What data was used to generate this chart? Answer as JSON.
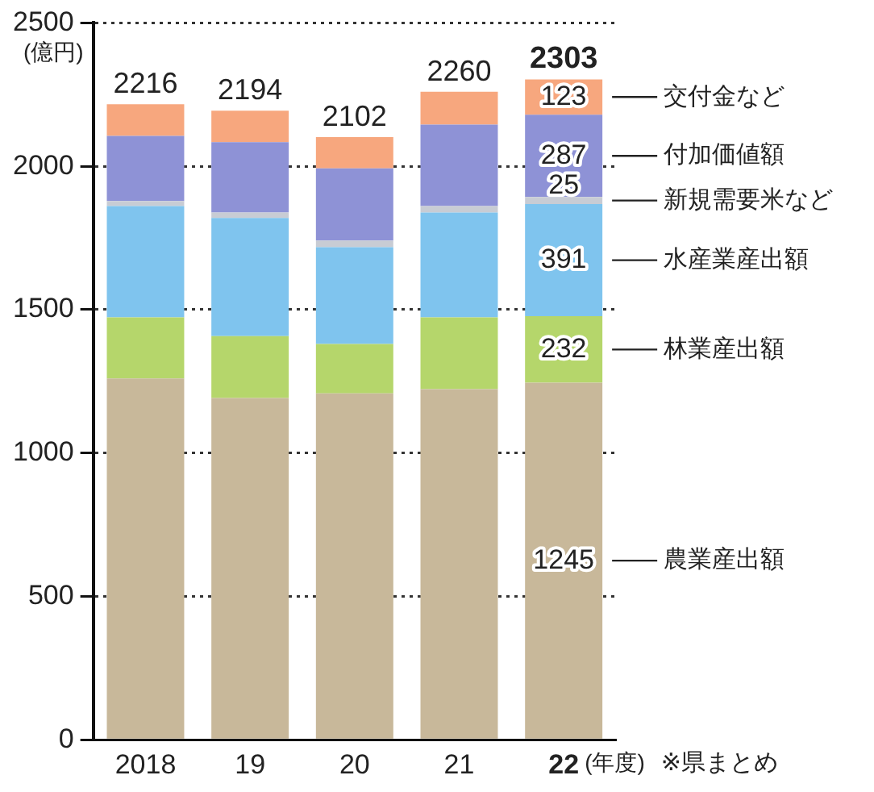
{
  "chart_data": {
    "type": "bar",
    "stacked": true,
    "ylabel": "(億円)",
    "xlabel": "(年度)",
    "categories": [
      "2018",
      "19",
      "20",
      "21",
      "22"
    ],
    "series": [
      {
        "name": "農業産出額",
        "color": "#c8b89a",
        "values": [
          1260,
          1192,
          1208,
          1223,
          1245
        ],
        "value_labels": [
          null,
          null,
          null,
          null,
          "1245"
        ]
      },
      {
        "name": "林業産出額",
        "color": "#b5d66b",
        "values": [
          213,
          216,
          172,
          250,
          232
        ],
        "value_labels": [
          null,
          null,
          null,
          null,
          "232"
        ]
      },
      {
        "name": "水産業産出額",
        "color": "#7fc4ee",
        "values": [
          388,
          412,
          338,
          366,
          391
        ],
        "value_labels": [
          null,
          null,
          null,
          null,
          "391"
        ]
      },
      {
        "name": "新規需要米など",
        "color": "#c8ccd4",
        "values": [
          18,
          19,
          23,
          22,
          25
        ],
        "value_labels": [
          null,
          null,
          null,
          null,
          "25"
        ]
      },
      {
        "name": "付加価値額",
        "color": "#8e92d6",
        "values": [
          227,
          245,
          252,
          284,
          287
        ],
        "value_labels": [
          null,
          null,
          null,
          null,
          "287"
        ]
      },
      {
        "name": "交付金など",
        "color": "#f7a77e",
        "values": [
          110,
          110,
          109,
          115,
          123
        ],
        "value_labels": [
          null,
          null,
          null,
          null,
          "123"
        ]
      }
    ],
    "totals": [
      "2216",
      "2194",
      "2102",
      "2260",
      "2303"
    ],
    "ylim": [
      0,
      2500
    ],
    "yticks": [
      0,
      500,
      1000,
      1500,
      2000,
      2500
    ],
    "grid": "y",
    "line_style": "dotted",
    "legend": false,
    "annotations": [
      "※県まとめ"
    ]
  }
}
